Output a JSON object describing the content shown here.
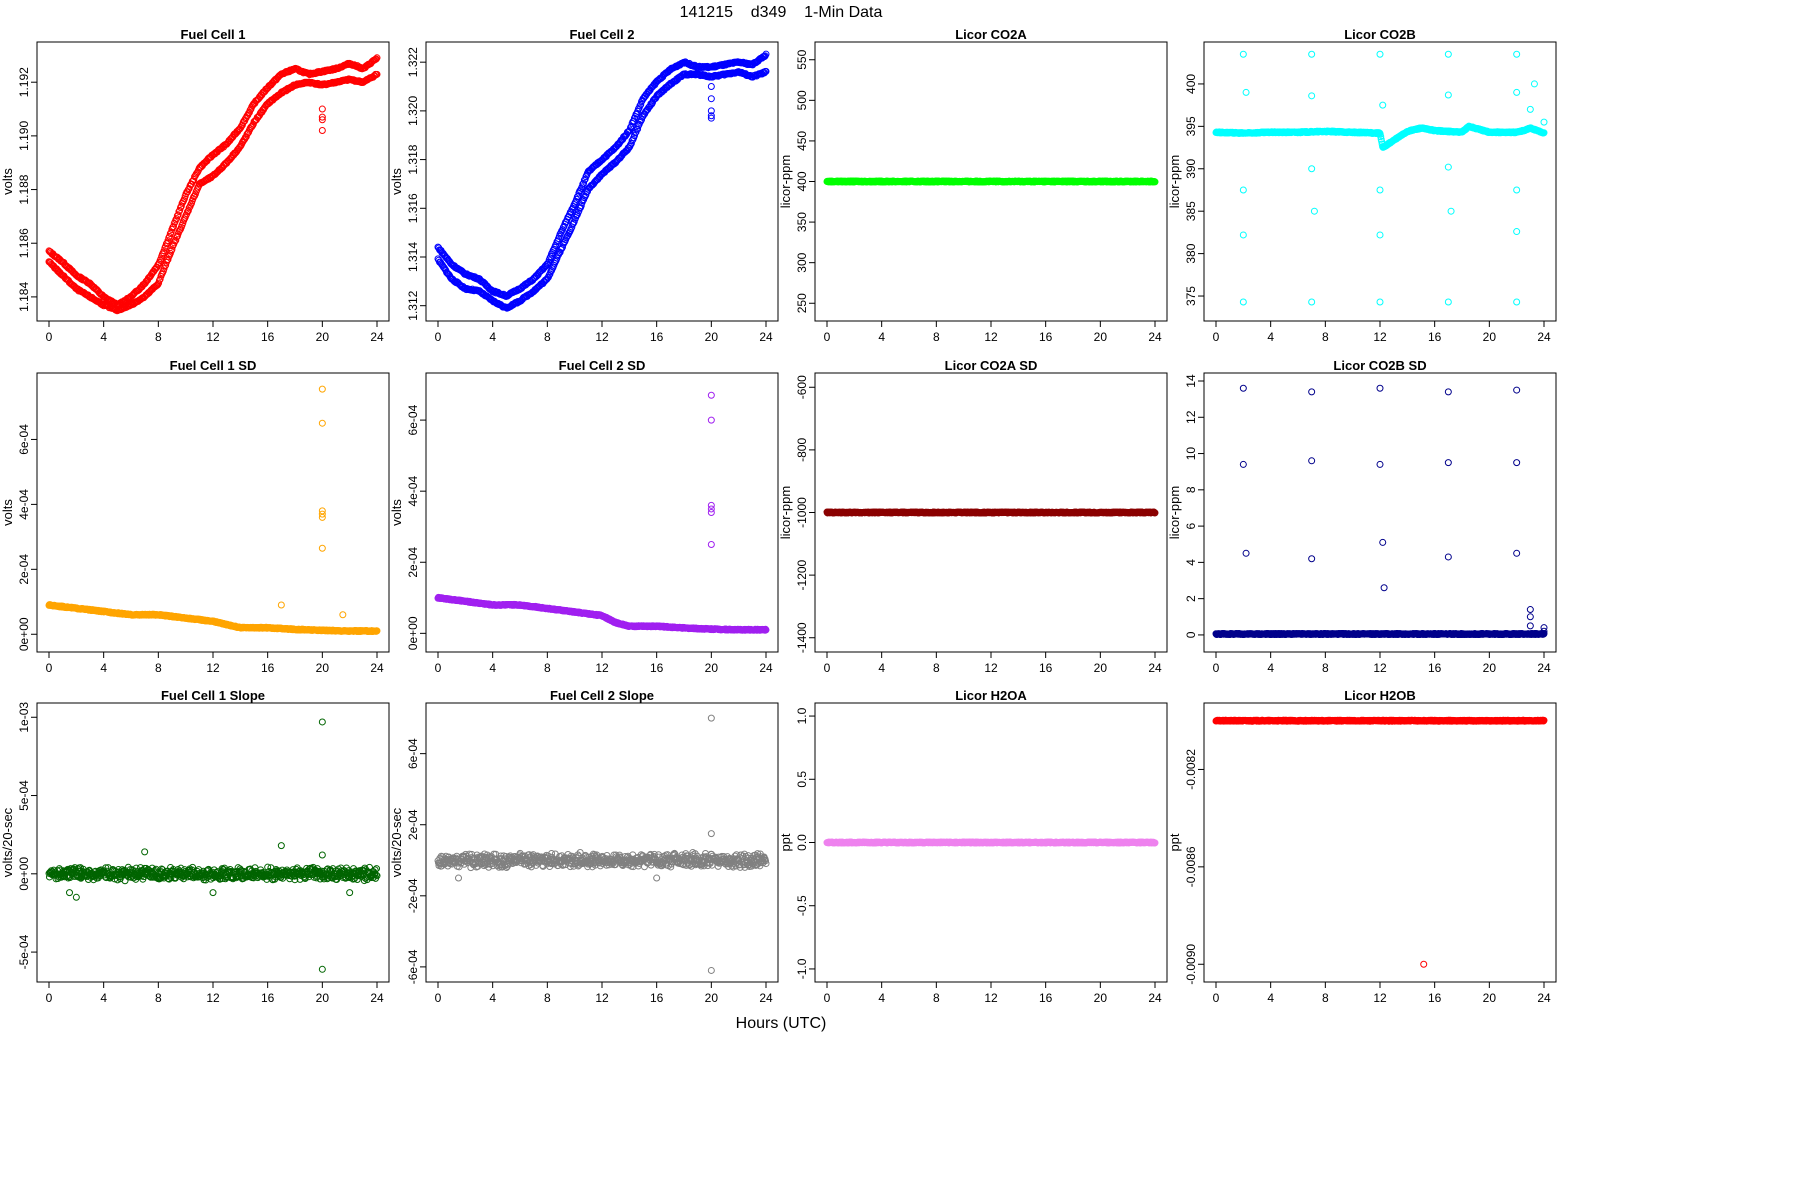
{
  "title": "141215    d349    1-Min Data",
  "xlabel": "Hours (UTC)",
  "chart_data": [
    {
      "type": "scatter",
      "title": "Fuel Cell 1",
      "ylabel": "volts",
      "color": "#ff0000",
      "xlim": [
        0,
        24
      ],
      "ylim": [
        1.1834,
        1.1932
      ],
      "xticks": [
        0,
        4,
        8,
        12,
        16,
        20,
        24
      ],
      "yticks": [
        1.184,
        1.186,
        1.188,
        1.19,
        1.192
      ],
      "ytick_labels": [
        "1.184",
        "1.186",
        "1.188",
        "1.190",
        "1.192"
      ],
      "series": [
        {
          "x": [
            0,
            1,
            2,
            3,
            4,
            5,
            6,
            7,
            8,
            9,
            10,
            11,
            12,
            13,
            14,
            15,
            16,
            17,
            18,
            19,
            20,
            21,
            22,
            23,
            24
          ],
          "y": [
            1.1857,
            1.1853,
            1.1848,
            1.1845,
            1.184,
            1.1837,
            1.184,
            1.1845,
            1.1852,
            1.1865,
            1.1878,
            1.1888,
            1.1893,
            1.1897,
            1.1903,
            1.1912,
            1.1918,
            1.1923,
            1.1925,
            1.1923,
            1.1924,
            1.1925,
            1.1927,
            1.1925,
            1.1929
          ]
        },
        {
          "x": [
            0,
            1,
            2,
            3,
            4,
            5,
            6,
            7,
            8,
            9,
            10,
            11,
            12,
            13,
            14,
            15,
            16,
            17,
            18,
            19,
            20,
            21,
            22,
            23,
            24
          ],
          "y": [
            1.1853,
            1.1848,
            1.1843,
            1.184,
            1.1837,
            1.1835,
            1.1837,
            1.184,
            1.1845,
            1.1858,
            1.187,
            1.1882,
            1.1885,
            1.189,
            1.1896,
            1.1905,
            1.1912,
            1.1916,
            1.1919,
            1.192,
            1.1919,
            1.192,
            1.1921,
            1.192,
            1.1923
          ]
        },
        {
          "x": [
            20,
            20,
            20,
            20
          ],
          "y": [
            1.191,
            1.1907,
            1.1906,
            1.1902
          ]
        }
      ]
    },
    {
      "type": "scatter",
      "title": "Fuel Cell 2",
      "ylabel": "volts",
      "color": "#0000ff",
      "xlim": [
        0,
        24
      ],
      "ylim": [
        1.3117,
        1.3225
      ],
      "xticks": [
        0,
        4,
        8,
        12,
        16,
        20,
        24
      ],
      "yticks": [
        1.312,
        1.314,
        1.316,
        1.318,
        1.32,
        1.322
      ],
      "ytick_labels": [
        "1.312",
        "1.314",
        "1.316",
        "1.318",
        "1.320",
        "1.322"
      ],
      "series": [
        {
          "x": [
            0,
            1,
            2,
            3,
            4,
            5,
            6,
            7,
            8,
            9,
            10,
            11,
            12,
            13,
            14,
            15,
            16,
            17,
            18,
            19,
            20,
            21,
            22,
            23,
            24
          ],
          "y": [
            1.3144,
            1.3137,
            1.3133,
            1.3131,
            1.3126,
            1.3124,
            1.3127,
            1.3131,
            1.3137,
            1.315,
            1.3162,
            1.3175,
            1.318,
            1.3185,
            1.3192,
            1.3205,
            1.3212,
            1.3217,
            1.322,
            1.3218,
            1.3218,
            1.3219,
            1.322,
            1.3219,
            1.3223
          ]
        },
        {
          "x": [
            0,
            1,
            2,
            3,
            4,
            5,
            6,
            7,
            8,
            9,
            10,
            11,
            12,
            13,
            14,
            15,
            16,
            17,
            18,
            19,
            20,
            21,
            22,
            23,
            24
          ],
          "y": [
            1.3139,
            1.3131,
            1.3127,
            1.3126,
            1.3122,
            1.3119,
            1.3122,
            1.3126,
            1.3131,
            1.3143,
            1.3155,
            1.3168,
            1.3174,
            1.3179,
            1.3185,
            1.3198,
            1.3206,
            1.3211,
            1.3215,
            1.3215,
            1.3214,
            1.3215,
            1.3216,
            1.3214,
            1.3216
          ]
        },
        {
          "x": [
            20,
            20,
            20,
            20,
            20
          ],
          "y": [
            1.321,
            1.3205,
            1.32,
            1.3198,
            1.3197
          ]
        }
      ]
    },
    {
      "type": "scatter",
      "title": "Licor CO2A",
      "ylabel": "licor-ppm",
      "color": "#00ff00",
      "xlim": [
        0,
        24
      ],
      "ylim": [
        238,
        562
      ],
      "xticks": [
        0,
        4,
        8,
        12,
        16,
        20,
        24
      ],
      "yticks": [
        250,
        300,
        350,
        400,
        450,
        500,
        550
      ],
      "ytick_labels": [
        "250",
        "300",
        "350",
        "400",
        "450",
        "500",
        "550"
      ],
      "series": [
        {
          "x": [
            0,
            24
          ],
          "y": [
            400,
            400
          ],
          "dense": true
        }
      ]
    },
    {
      "type": "scatter",
      "title": "Licor CO2B",
      "ylabel": "licor-ppm",
      "color": "#00ffff",
      "xlim": [
        0,
        24
      ],
      "ylim": [
        373,
        404
      ],
      "xticks": [
        0,
        4,
        8,
        12,
        16,
        20,
        24
      ],
      "yticks": [
        375,
        380,
        385,
        390,
        395,
        400
      ],
      "ytick_labels": [
        "375",
        "380",
        "385",
        "390",
        "395",
        "400"
      ],
      "series": [
        {
          "x": [
            0,
            2,
            4,
            6,
            8,
            10,
            12,
            12.2,
            14,
            15,
            16,
            18,
            18.5,
            20,
            22,
            22.5,
            23,
            24
          ],
          "y": [
            394.3,
            394.2,
            394.3,
            394.3,
            394.4,
            394.3,
            394.2,
            392.5,
            394.4,
            394.8,
            394.5,
            394.3,
            395.0,
            394.3,
            394.3,
            394.5,
            394.8,
            394.2
          ],
          "dense": true
        },
        {
          "x": [
            2,
            7,
            12,
            17,
            22,
            2,
            7,
            12,
            17,
            22
          ],
          "y": [
            403.5,
            403.5,
            403.5,
            403.5,
            403.5,
            374.3,
            374.3,
            374.3,
            374.3,
            374.3
          ]
        },
        {
          "x": [
            2.2,
            7,
            12.2,
            17,
            22,
            2,
            7.2,
            12,
            17.2,
            22,
            2,
            7,
            12,
            17,
            22,
            23,
            23.3,
            24
          ],
          "y": [
            399,
            398.6,
            397.5,
            398.7,
            399,
            387.5,
            385,
            387.5,
            385,
            387.5,
            382.2,
            390,
            382.2,
            390.2,
            382.6,
            397,
            400,
            395.5
          ]
        }
      ]
    },
    {
      "type": "scatter",
      "title": "Fuel Cell 1 SD",
      "ylabel": "volts",
      "color": "#ffa500",
      "xlim": [
        0,
        24
      ],
      "ylim": [
        -3e-05,
        0.00078
      ],
      "xticks": [
        0,
        4,
        8,
        12,
        16,
        20,
        24
      ],
      "yticks": [
        0,
        0.0002,
        0.0004,
        0.0006
      ],
      "ytick_labels": [
        "0e+00",
        "2e-04",
        "4e-04",
        "6e-04"
      ],
      "series": [
        {
          "x": [
            0,
            2,
            4,
            6,
            8,
            10,
            12,
            13,
            14,
            16,
            18,
            20,
            22,
            24
          ],
          "y": [
            9e-05,
            8e-05,
            7e-05,
            6e-05,
            6e-05,
            5e-05,
            4e-05,
            3e-05,
            2e-05,
            2e-05,
            1.5e-05,
            1.2e-05,
            1e-05,
            1e-05
          ],
          "dense": true
        },
        {
          "x": [
            20,
            20,
            20,
            20,
            20,
            20,
            17,
            21.5
          ],
          "y": [
            0.000755,
            0.00065,
            0.00038,
            0.00037,
            0.00036,
            0.000265,
            9e-05,
            6e-05
          ]
        }
      ]
    },
    {
      "type": "scatter",
      "title": "Fuel Cell 2 SD",
      "ylabel": "volts",
      "color": "#a020f0",
      "xlim": [
        0,
        24
      ],
      "ylim": [
        -3e-05,
        0.00071
      ],
      "xticks": [
        0,
        4,
        8,
        12,
        16,
        20,
        24
      ],
      "yticks": [
        0,
        0.0002,
        0.0004,
        0.0006
      ],
      "ytick_labels": [
        "0e+00",
        "2e-04",
        "4e-04",
        "6e-04"
      ],
      "series": [
        {
          "x": [
            0,
            2,
            4,
            6,
            8,
            10,
            12,
            13,
            14,
            16,
            18,
            20,
            22,
            24
          ],
          "y": [
            0.0001,
            9e-05,
            8e-05,
            8e-05,
            7e-05,
            6e-05,
            5e-05,
            3e-05,
            2e-05,
            2e-05,
            1.5e-05,
            1.2e-05,
            1e-05,
            1e-05
          ],
          "dense": true
        },
        {
          "x": [
            20,
            20,
            20,
            20,
            20,
            20
          ],
          "y": [
            0.00067,
            0.0006,
            0.00036,
            0.00035,
            0.00034,
            0.00025
          ]
        }
      ]
    },
    {
      "type": "scatter",
      "title": "Licor CO2A SD",
      "ylabel": "licor-ppm",
      "color": "#8b0000",
      "xlim": [
        0,
        24
      ],
      "ylim": [
        -1420,
        -580
      ],
      "xticks": [
        0,
        4,
        8,
        12,
        16,
        20,
        24
      ],
      "yticks": [
        -1400,
        -1200,
        -1000,
        -800,
        -600
      ],
      "ytick_labels": [
        "-1400",
        "-1200",
        "-1000",
        "-800",
        "-600"
      ],
      "series": [
        {
          "x": [
            0,
            24
          ],
          "y": [
            -1000,
            -1000
          ],
          "dense": true
        }
      ]
    },
    {
      "type": "scatter",
      "title": "Licor CO2B SD",
      "ylabel": "licor-ppm",
      "color": "#00008b",
      "xlim": [
        0,
        24
      ],
      "ylim": [
        -0.5,
        14
      ],
      "xticks": [
        0,
        4,
        8,
        12,
        16,
        20,
        24
      ],
      "yticks": [
        0,
        2,
        4,
        6,
        8,
        10,
        12,
        14
      ],
      "ytick_labels": [
        "0",
        "2",
        "4",
        "6",
        "8",
        "10",
        "12",
        "14"
      ],
      "series": [
        {
          "x": [
            0,
            24
          ],
          "y": [
            0.05,
            0.05
          ],
          "dense": true
        },
        {
          "x": [
            2,
            7,
            12,
            17,
            22,
            2,
            7,
            12,
            17,
            22,
            2.2,
            7,
            12.2,
            17,
            22,
            12.3,
            23,
            23,
            23,
            24,
            24
          ],
          "y": [
            13.6,
            13.4,
            13.6,
            13.4,
            13.5,
            9.4,
            9.6,
            9.4,
            9.5,
            9.5,
            4.5,
            4.2,
            5.1,
            4.3,
            4.5,
            2.6,
            1.4,
            1.0,
            0.5,
            0.4,
            0.2
          ]
        }
      ]
    },
    {
      "type": "scatter",
      "title": "Fuel Cell 1 Slope",
      "ylabel": "volts/20-sec",
      "color": "#006400",
      "xlim": [
        0,
        24
      ],
      "ylim": [
        -0.00064,
        0.00104
      ],
      "xticks": [
        0,
        4,
        8,
        12,
        16,
        20,
        24
      ],
      "yticks": [
        -0.0005,
        0,
        0.0005,
        0.001
      ],
      "ytick_labels": [
        "-5e-04",
        "0e+00",
        "5e-04",
        "1e-03"
      ],
      "series": [
        {
          "x": [
            0,
            24
          ],
          "y": [
            0,
            0
          ],
          "dense": true,
          "spread": 3e-05
        },
        {
          "x": [
            20,
            20,
            17,
            7,
            2,
            1.5,
            12,
            20,
            22
          ],
          "y": [
            0.00097,
            -0.00061,
            0.00018,
            0.00014,
            -0.00015,
            -0.00012,
            -0.00012,
            0.00012,
            -0.00012
          ]
        }
      ]
    },
    {
      "type": "scatter",
      "title": "Fuel Cell 2 Slope",
      "ylabel": "volts/20-sec",
      "color": "#808080",
      "xlim": [
        0,
        24
      ],
      "ylim": [
        -0.00064,
        0.00084
      ],
      "xticks": [
        0,
        4,
        8,
        12,
        16,
        20,
        24
      ],
      "yticks": [
        -0.0006,
        -0.0002,
        0.0002,
        0.0006
      ],
      "ytick_labels": [
        "-6e-04",
        "-2e-04",
        "2e-04",
        "6e-04"
      ],
      "series": [
        {
          "x": [
            0,
            24
          ],
          "y": [
            0,
            0
          ],
          "dense": true,
          "spread": 3e-05
        },
        {
          "x": [
            20,
            20,
            20,
            16,
            1.5
          ],
          "y": [
            0.0008,
            -0.00062,
            0.00015,
            -0.0001,
            -0.0001
          ]
        }
      ]
    },
    {
      "type": "scatter",
      "title": "Licor H2OA",
      "ylabel": "ppt",
      "color": "#ee82ee",
      "xlim": [
        0,
        24
      ],
      "ylim": [
        -1.04,
        1.04
      ],
      "xticks": [
        0,
        4,
        8,
        12,
        16,
        20,
        24
      ],
      "yticks": [
        -1.0,
        -0.5,
        0.0,
        0.5,
        1.0
      ],
      "ytick_labels": [
        "-1.0",
        "-0.5",
        "0.0",
        "0.5",
        "1.0"
      ],
      "series": [
        {
          "x": [
            0,
            24
          ],
          "y": [
            0,
            0
          ],
          "dense": true
        }
      ]
    },
    {
      "type": "scatter",
      "title": "Licor H2OB",
      "ylabel": "ppt",
      "color": "#ff0000",
      "xlim": [
        0,
        24
      ],
      "ylim": [
        -0.00904,
        -0.00796
      ],
      "xticks": [
        0,
        4,
        8,
        12,
        16,
        20,
        24
      ],
      "yticks": [
        -0.009,
        -0.0086,
        -0.0082
      ],
      "ytick_labels": [
        "-0.0090",
        "-0.0086",
        "-0.0082"
      ],
      "series": [
        {
          "x": [
            0,
            24
          ],
          "y": [
            -0.008,
            -0.008
          ],
          "dense": true
        },
        {
          "x": [
            15.2
          ],
          "y": [
            -0.009
          ]
        }
      ]
    }
  ]
}
